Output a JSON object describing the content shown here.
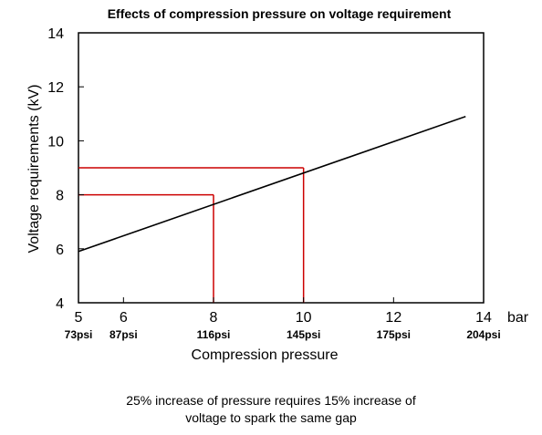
{
  "chart_data": {
    "type": "line",
    "title": "Effects of compression pressure on voltage requirement",
    "xlabel": "Compression pressure",
    "ylabel": "Voltage requirements (kV)",
    "x_unit": "bar",
    "xlim": [
      5,
      14
    ],
    "ylim": [
      4,
      14
    ],
    "x_ticks": [
      {
        "value": 5,
        "label": "5",
        "psi": "73psi"
      },
      {
        "value": 6,
        "label": "6",
        "psi": "87psi"
      },
      {
        "value": 8,
        "label": "8",
        "psi": "116psi"
      },
      {
        "value": 10,
        "label": "10",
        "psi": "145psi"
      },
      {
        "value": 12,
        "label": "12",
        "psi": "175psi"
      },
      {
        "value": 14,
        "label": "14",
        "psi": "204psi"
      }
    ],
    "y_ticks": [
      4,
      6,
      8,
      10,
      12,
      14
    ],
    "grid": false,
    "series": [
      {
        "x": [
          5,
          13.6
        ],
        "y": [
          5.9,
          10.9
        ],
        "color": "#000000"
      }
    ],
    "reference_lines": [
      {
        "x": 8,
        "y": 8,
        "color": "#cc0000"
      },
      {
        "x": 10,
        "y": 9,
        "color": "#cc0000"
      }
    ]
  },
  "caption": {
    "line1": "25% increase of pressure requires 15% increase of",
    "line2": "voltage to spark the same gap"
  }
}
